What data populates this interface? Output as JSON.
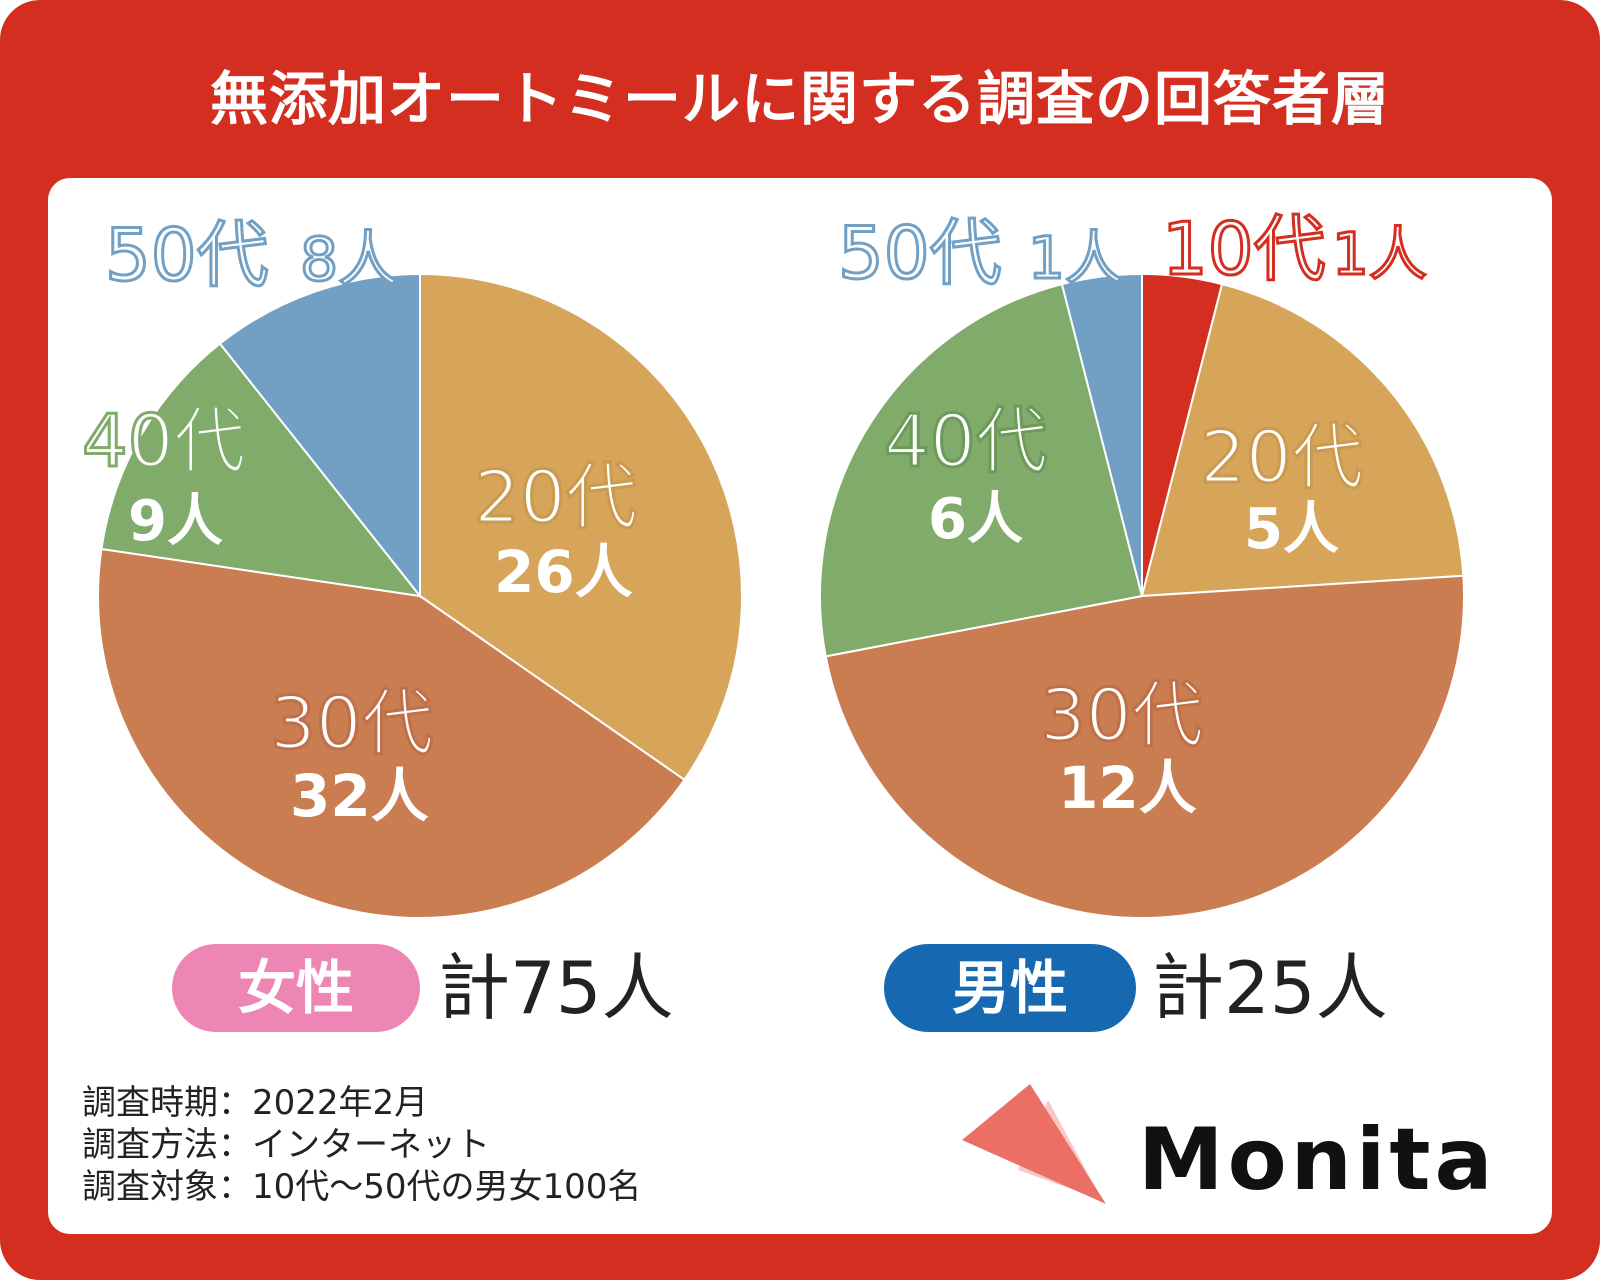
{
  "title": "無添加オートミールに関する調査の回答者層",
  "colors": {
    "frame": "#d32e1f",
    "age10": "#d32e1f",
    "age20": "#d6a55a",
    "age30": "#cb7d52",
    "age40": "#80ab6a",
    "age50": "#71a0c4",
    "female_badge": "#ee86b5",
    "male_badge": "#1668b1"
  },
  "chart_data": [
    {
      "type": "pie",
      "title": "女性",
      "total_label": "計75人",
      "slices": [
        {
          "label": "20代",
          "count_label": "26人",
          "value": 26
        },
        {
          "label": "30代",
          "count_label": "32人",
          "value": 32
        },
        {
          "label": "40代",
          "count_label": "9人",
          "value": 9
        },
        {
          "label": "50代",
          "count_label": "8人",
          "value": 8
        }
      ]
    },
    {
      "type": "pie",
      "title": "男性",
      "total_label": "計25人",
      "slices": [
        {
          "label": "10代",
          "count_label": "1人",
          "value": 1
        },
        {
          "label": "20代",
          "count_label": "5人",
          "value": 5
        },
        {
          "label": "30代",
          "count_label": "12人",
          "value": 12
        },
        {
          "label": "40代",
          "count_label": "6人",
          "value": 6
        },
        {
          "label": "50代",
          "count_label": "1人",
          "value": 1
        }
      ]
    }
  ],
  "survey": {
    "period": "調査時期：2022年2月",
    "method": "調査方法：インターネット",
    "target": "調査対象：10代～50代の男女100名"
  },
  "brand": {
    "name": "Monita"
  }
}
